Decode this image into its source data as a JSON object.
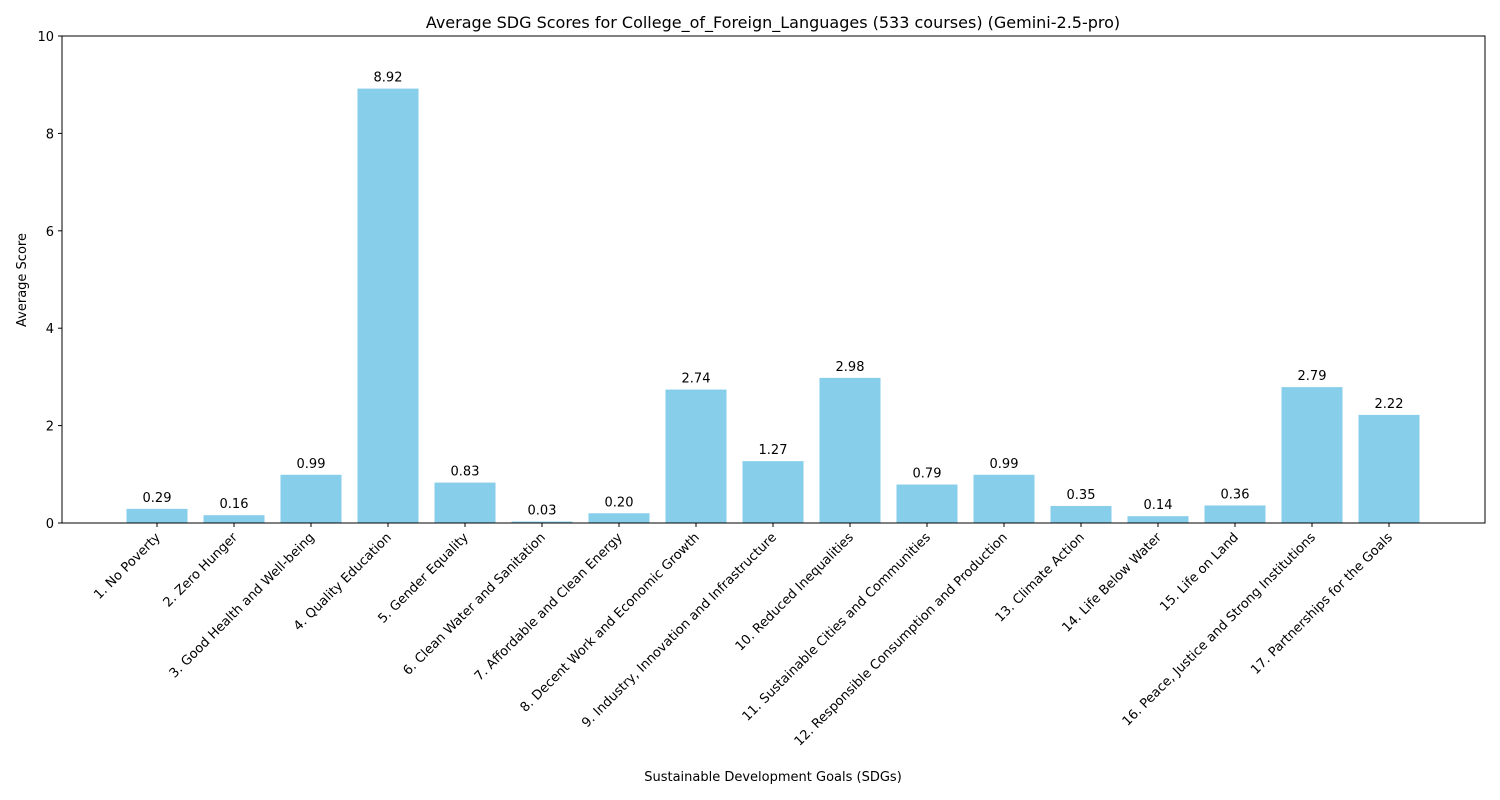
{
  "chart_data": {
    "type": "bar",
    "title": "Average SDG Scores for College_of_Foreign_Languages (533 courses) (Gemini-2.5-pro)",
    "xlabel": "Sustainable Development Goals (SDGs)",
    "ylabel": "Average Score",
    "ylim": [
      0,
      10
    ],
    "yticks": [
      0,
      2,
      4,
      6,
      8,
      10
    ],
    "grid": false,
    "legend": "none",
    "bar_color": "#87ceeb",
    "categories": [
      "1. No Poverty",
      "2. Zero Hunger",
      "3. Good Health and Well-being",
      "4. Quality Education",
      "5. Gender Equality",
      "6. Clean Water and Sanitation",
      "7. Affordable and Clean Energy",
      "8. Decent Work and Economic Growth",
      "9. Industry, Innovation and Infrastructure",
      "10. Reduced Inequalities",
      "11. Sustainable Cities and Communities",
      "12. Responsible Consumption and Production",
      "13. Climate Action",
      "14. Life Below Water",
      "15. Life on Land",
      "16. Peace, Justice and Strong Institutions",
      "17. Partnerships for the Goals"
    ],
    "values": [
      0.29,
      0.16,
      0.99,
      8.92,
      0.83,
      0.03,
      0.2,
      2.74,
      1.27,
      2.98,
      0.79,
      0.99,
      0.35,
      0.14,
      0.36,
      2.79,
      2.22
    ],
    "value_labels": [
      "0.29",
      "0.16",
      "0.99",
      "8.92",
      "0.83",
      "0.03",
      "0.20",
      "2.74",
      "1.27",
      "2.98",
      "0.79",
      "0.99",
      "0.35",
      "0.14",
      "0.36",
      "2.79",
      "2.22"
    ]
  }
}
